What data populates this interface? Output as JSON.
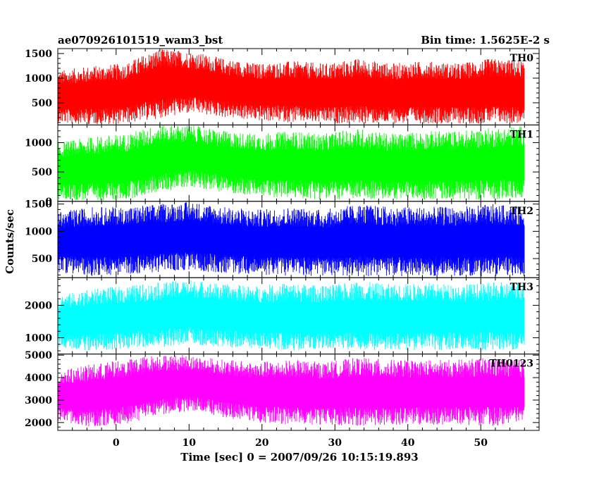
{
  "chart_data": {
    "type": "line",
    "title_left": "ae070926101519_wam3_bst",
    "title_right": "Bin time: 1.5625E-2 s",
    "xlabel": "Time [sec] 0 = 2007/09/26 10:15:19.893",
    "ylabel": "Counts/sec",
    "xlim": [
      -8,
      58
    ],
    "x_ticks": [
      0,
      10,
      20,
      30,
      40,
      50
    ],
    "x_tick_labels": [
      "0",
      "10",
      "20",
      "30",
      "40",
      "50"
    ],
    "data_x_range": [
      -8,
      56
    ],
    "panels": [
      {
        "name": "TH0",
        "color": "#ff0000",
        "ylim": [
          50,
          1600
        ],
        "y_ticks": [
          500,
          1000,
          1500
        ],
        "y_tick_labels": [
          "500",
          "1000",
          "1500"
        ],
        "band_low": [
          80,
          60,
          70,
          180,
          280,
          200,
          130,
          100,
          80,
          75,
          70,
          80,
          70,
          80,
          70
        ],
        "band_high": [
          1150,
          1250,
          1300,
          1600,
          1550,
          1400,
          1300,
          1350,
          1300,
          1400,
          1300,
          1350,
          1300,
          1400,
          1350
        ]
      },
      {
        "name": "TH1",
        "color": "#00ff00",
        "ylim": [
          0,
          1300
        ],
        "y_ticks": [
          0,
          500,
          1000
        ],
        "y_tick_labels": [
          "0",
          "500",
          "1000"
        ],
        "band_low": [
          20,
          10,
          20,
          150,
          250,
          150,
          80,
          50,
          30,
          30,
          30,
          30,
          30,
          30,
          30
        ],
        "band_high": [
          1000,
          1100,
          1150,
          1300,
          1300,
          1200,
          1150,
          1200,
          1150,
          1250,
          1150,
          1200,
          1200,
          1250,
          1300
        ]
      },
      {
        "name": "TH2",
        "color": "#0000ff",
        "ylim": [
          150,
          1550
        ],
        "y_ticks": [
          500,
          1000,
          1500
        ],
        "y_tick_labels": [
          "500",
          "1000",
          "1500"
        ],
        "band_low": [
          250,
          180,
          200,
          250,
          280,
          230,
          200,
          180,
          180,
          170,
          180,
          170,
          180,
          170,
          180
        ],
        "band_high": [
          1350,
          1450,
          1450,
          1500,
          1550,
          1450,
          1400,
          1450,
          1400,
          1500,
          1450,
          1450,
          1450,
          1500,
          1450
        ]
      },
      {
        "name": "TH3",
        "color": "#00ffff",
        "ylim": [
          500,
          2850
        ],
        "y_ticks": [
          1000,
          2000
        ],
        "y_tick_labels": [
          "1000",
          "2000"
        ],
        "band_low": [
          700,
          600,
          650,
          700,
          800,
          700,
          650,
          600,
          620,
          600,
          620,
          600,
          620,
          600,
          620
        ],
        "band_high": [
          2300,
          2500,
          2600,
          2700,
          2800,
          2650,
          2600,
          2700,
          2600,
          2750,
          2650,
          2700,
          2650,
          2700,
          2750
        ]
      },
      {
        "name": "TH0123",
        "color": "#ff00ff",
        "ylim": [
          1650,
          5050
        ],
        "y_ticks": [
          2000,
          3000,
          4000,
          5000
        ],
        "y_tick_labels": [
          "2000",
          "3000",
          "4000",
          "5000"
        ],
        "band_low": [
          2000,
          1800,
          1900,
          2300,
          2500,
          2200,
          2000,
          1900,
          1900,
          1850,
          1900,
          1850,
          1900,
          1850,
          1900
        ],
        "band_high": [
          4300,
          4600,
          4800,
          5050,
          5000,
          4800,
          4700,
          4800,
          4700,
          4900,
          4800,
          4800,
          4800,
          4900,
          4800
        ]
      }
    ]
  }
}
